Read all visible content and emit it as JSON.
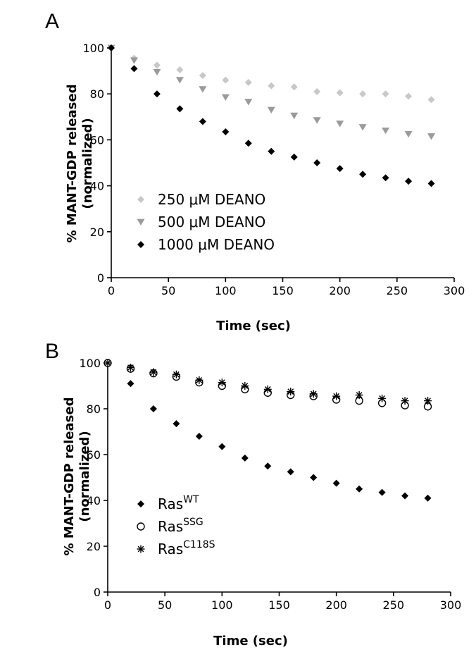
{
  "chart_data": [
    {
      "panel": "A",
      "type": "scatter",
      "xlabel": "Time (sec)",
      "ylabel": "% MANT-GDP released",
      "ylabel2": "(normalized)",
      "xlim": [
        0,
        300
      ],
      "ylim": [
        0,
        100
      ],
      "xticks": [
        0,
        50,
        100,
        150,
        200,
        250,
        300
      ],
      "yticks": [
        0,
        20,
        40,
        60,
        80,
        100
      ],
      "legend_position": "bottom-left",
      "x": [
        0,
        20,
        40,
        60,
        80,
        100,
        120,
        140,
        160,
        180,
        200,
        220,
        240,
        260,
        280
      ],
      "series": [
        {
          "name": "250 μM DEANO",
          "name_parts": [
            "250 ",
            "μ",
            "M DEANO"
          ],
          "marker": "diamond",
          "color": "#c8c8c8",
          "values": [
            100,
            95.5,
            92.5,
            90.5,
            88,
            86,
            85,
            83.5,
            83,
            81,
            80.5,
            80,
            80,
            79,
            77.5
          ]
        },
        {
          "name": "500 μM DEANO",
          "name_parts": [
            "500 ",
            "μ",
            "M DEANO"
          ],
          "marker": "triangle-down",
          "color": "#9a9a9a",
          "values": [
            100,
            94.5,
            89.5,
            86,
            82,
            78.5,
            76.5,
            73,
            70.5,
            68.5,
            67,
            65.5,
            64,
            62.5,
            61.5
          ]
        },
        {
          "name": "1000 μM DEANO",
          "name_parts": [
            "1000 ",
            "μ",
            "M DEANO"
          ],
          "marker": "diamond",
          "color": "#000000",
          "values": [
            100,
            91,
            80,
            73.5,
            68,
            63.5,
            58.5,
            55,
            52.5,
            50,
            47.5,
            45,
            43.5,
            42,
            41
          ]
        }
      ]
    },
    {
      "panel": "B",
      "type": "scatter",
      "xlabel": "Time (sec)",
      "ylabel": "% MANT-GDP released",
      "ylabel2": "(normalized)",
      "xlim": [
        0,
        300
      ],
      "ylim": [
        0,
        100
      ],
      "xticks": [
        0,
        50,
        100,
        150,
        200,
        250,
        300
      ],
      "yticks": [
        0,
        20,
        40,
        60,
        80,
        100
      ],
      "legend_position": "bottom-left",
      "x": [
        0,
        20,
        40,
        60,
        80,
        100,
        120,
        140,
        160,
        180,
        200,
        220,
        240,
        260,
        280
      ],
      "series": [
        {
          "name": "RasWT",
          "name_parts": [
            "Ras",
            "WT"
          ],
          "marker": "diamond",
          "color": "#000000",
          "values": [
            100,
            91,
            80,
            73.5,
            68,
            63.5,
            58.5,
            55,
            52.5,
            50,
            47.5,
            45,
            43.5,
            42,
            41
          ]
        },
        {
          "name": "RasSSG",
          "name_parts": [
            "Ras",
            "SSG"
          ],
          "marker": "open-circle",
          "color": "#000000",
          "values": [
            100,
            97.5,
            95.5,
            94,
            91.5,
            90,
            88.5,
            87,
            86,
            85.5,
            84,
            83.5,
            82.5,
            81.5,
            81
          ]
        },
        {
          "name": "RasC118S",
          "name_parts": [
            "Ras",
            "C118S"
          ],
          "marker": "asterisk",
          "color": "#000000",
          "values": [
            100,
            98,
            96,
            95,
            92.5,
            91.5,
            90,
            88.5,
            87.5,
            86.5,
            85.5,
            86,
            84.5,
            83.5,
            83.5
          ]
        }
      ]
    }
  ]
}
